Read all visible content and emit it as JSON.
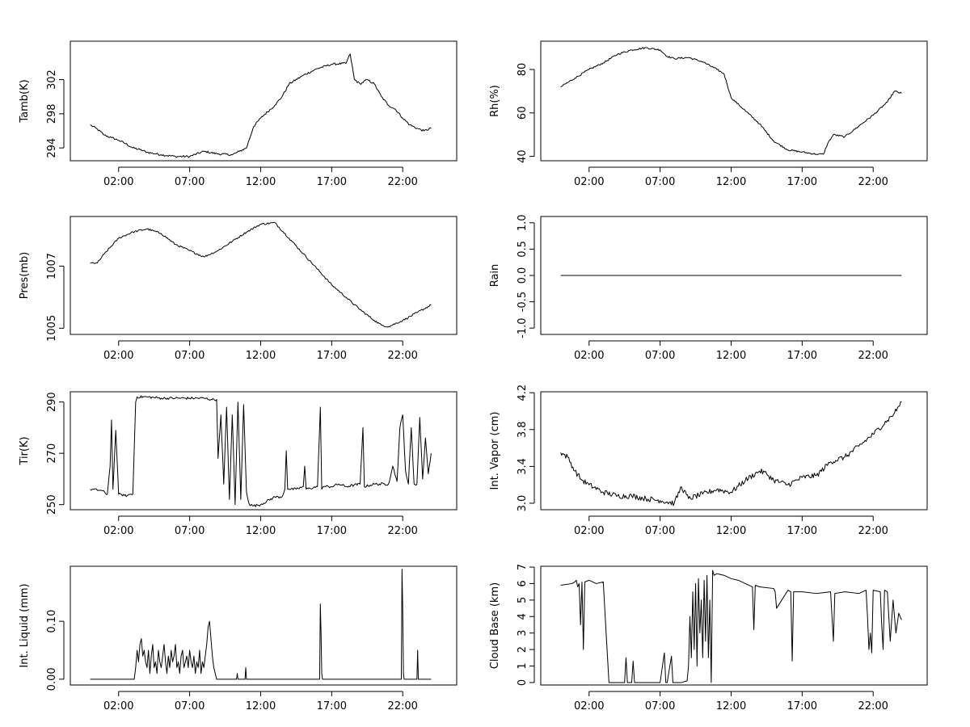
{
  "chart_data": [
    {
      "id": "tamb",
      "type": "line",
      "ylabel": "Tamb(K)",
      "xlim": [
        -1.4,
        25.8
      ],
      "ylim": [
        292.5,
        306.5
      ],
      "yticks": [
        294,
        298,
        302
      ],
      "ytick_labels": [
        "294",
        "298",
        "302"
      ],
      "xticks": [
        2,
        7,
        12,
        17,
        22
      ],
      "xtick_labels": [
        "02:00",
        "07:00",
        "12:00",
        "17:00",
        "22:00"
      ],
      "noise": 0.12,
      "x": [
        0,
        0.5,
        1,
        1.5,
        2,
        2.5,
        3,
        3.5,
        4,
        5,
        6,
        7,
        8,
        9,
        10,
        10.5,
        11,
        11.5,
        12,
        13,
        13.5,
        14,
        15,
        16,
        17,
        18,
        18.3,
        18.6,
        19,
        19.5,
        20,
        20.5,
        21,
        21.5,
        22,
        22.5,
        23,
        23.5,
        24
      ],
      "y": [
        296.7,
        296.2,
        295.5,
        295.2,
        294.9,
        294.5,
        294.0,
        293.8,
        293.5,
        293.2,
        293.0,
        293.0,
        293.6,
        293.3,
        293.2,
        293.6,
        294.0,
        296.5,
        297.5,
        299.0,
        300.0,
        301.5,
        302.5,
        303.3,
        303.8,
        303.9,
        305.0,
        302.0,
        301.5,
        302.0,
        301.5,
        300.0,
        299.0,
        298.5,
        297.5,
        296.7,
        296.3,
        296.0,
        296.3
      ]
    },
    {
      "id": "rh",
      "type": "line",
      "ylabel": "Rh(%)",
      "xlim": [
        -1.4,
        25.8
      ],
      "ylim": [
        38,
        93
      ],
      "yticks": [
        40,
        60,
        80
      ],
      "ytick_labels": [
        "40",
        "60",
        "80"
      ],
      "xticks": [
        2,
        7,
        12,
        17,
        22
      ],
      "xtick_labels": [
        "02:00",
        "07:00",
        "12:00",
        "17:00",
        "22:00"
      ],
      "noise": 0.4,
      "x": [
        0,
        1,
        2,
        3,
        4,
        5,
        6,
        7,
        7.5,
        8,
        9,
        10,
        11,
        11.5,
        12,
        13,
        14,
        15,
        16,
        17,
        18,
        18.5,
        18.8,
        19.2,
        20,
        21,
        22,
        23,
        23.5,
        24
      ],
      "y": [
        72,
        76,
        80,
        83,
        87,
        89,
        90,
        89,
        86,
        85,
        85.5,
        83.5,
        80,
        78,
        67,
        61,
        55,
        47,
        43,
        42,
        41,
        41,
        46,
        50,
        49,
        54,
        59,
        65,
        70,
        69
      ]
    },
    {
      "id": "pres",
      "type": "line",
      "ylabel": "Pres(mb)",
      "xlim": [
        -1.4,
        25.8
      ],
      "ylim": [
        1004.8,
        1008.6
      ],
      "yticks": [
        1005,
        1007
      ],
      "ytick_labels": [
        "1005",
        "1007"
      ],
      "xticks": [
        2,
        7,
        12,
        17,
        22
      ],
      "xtick_labels": [
        "02:00",
        "07:00",
        "12:00",
        "17:00",
        "22:00"
      ],
      "noise": 0.03,
      "x": [
        0,
        0.5,
        1,
        2,
        3,
        4,
        5,
        6,
        7,
        8,
        9,
        10,
        11,
        12,
        13,
        14,
        15,
        16,
        17,
        18,
        19,
        20,
        20.5,
        21,
        22,
        23,
        24
      ],
      "y": [
        1007.1,
        1007.1,
        1007.4,
        1007.9,
        1008.1,
        1008.2,
        1008.05,
        1007.7,
        1007.5,
        1007.3,
        1007.5,
        1007.8,
        1008.1,
        1008.35,
        1008.4,
        1007.9,
        1007.4,
        1006.9,
        1006.4,
        1006.0,
        1005.6,
        1005.25,
        1005.1,
        1005.05,
        1005.25,
        1005.5,
        1005.75
      ]
    },
    {
      "id": "rain",
      "type": "line",
      "ylabel": "Rain",
      "xlim": [
        -1.4,
        25.8
      ],
      "ylim": [
        -1.12,
        1.12
      ],
      "yticks": [
        -1.0,
        -0.5,
        0.0,
        0.5,
        1.0
      ],
      "ytick_labels": [
        "-1.0",
        "-0.5",
        "0.0",
        "0.5",
        "1.0"
      ],
      "xticks": [
        2,
        7,
        12,
        17,
        22
      ],
      "xtick_labels": [
        "02:00",
        "07:00",
        "12:00",
        "17:00",
        "22:00"
      ],
      "noise": 0,
      "x": [
        0,
        24
      ],
      "y": [
        0,
        0
      ]
    },
    {
      "id": "tir",
      "type": "line",
      "ylabel": "Tir(K)",
      "xlim": [
        -1.4,
        25.8
      ],
      "ylim": [
        248,
        294
      ],
      "yticks": [
        250,
        270,
        290
      ],
      "ytick_labels": [
        "250",
        "270",
        "290"
      ],
      "xticks": [
        2,
        7,
        12,
        17,
        22
      ],
      "xtick_labels": [
        "02:00",
        "07:00",
        "12:00",
        "17:00",
        "22:00"
      ],
      "noise": 0.5,
      "x": [
        0,
        0.8,
        1.2,
        1.4,
        1.5,
        1.6,
        1.8,
        2.0,
        2.2,
        2.4,
        2.6,
        2.8,
        3.0,
        3.2,
        3.3,
        4,
        5,
        6,
        7,
        8,
        8.5,
        8.9,
        9.0,
        9.2,
        9.4,
        9.6,
        9.8,
        10.0,
        10.2,
        10.4,
        10.6,
        10.8,
        11.0,
        11.2,
        11.5,
        12,
        13,
        13.5,
        13.7,
        13.8,
        13.9,
        14,
        14.5,
        15,
        15.1,
        15.2,
        16,
        16.2,
        16.3,
        16.4,
        17,
        17.5,
        18,
        19,
        19.2,
        19.3,
        20,
        21,
        21.3,
        21.6,
        21.8,
        22.0,
        22.2,
        22.4,
        22.6,
        22.8,
        23.0,
        23.2,
        23.4,
        23.6,
        23.8,
        24
      ],
      "y": [
        256,
        255.5,
        254,
        265,
        283,
        256,
        279,
        254,
        254,
        253.5,
        253.5,
        254,
        254,
        290,
        292,
        292,
        291.5,
        291.5,
        291.5,
        291.5,
        291,
        291,
        268,
        285,
        258,
        288,
        252,
        285,
        250,
        290,
        252,
        289,
        255,
        250,
        249.5,
        250,
        253,
        253,
        256,
        271,
        256,
        256,
        256,
        257,
        265,
        256,
        257,
        288,
        256,
        257,
        257,
        258,
        257,
        258,
        280,
        257,
        258,
        258,
        265,
        259,
        280,
        285,
        263,
        258,
        280,
        258,
        258,
        284,
        260,
        276,
        262,
        270
      ]
    },
    {
      "id": "vapor",
      "type": "line",
      "ylabel": "Int. Vapor (cm)",
      "xlim": [
        -1.4,
        25.8
      ],
      "ylim": [
        2.93,
        4.21
      ],
      "yticks": [
        3.0,
        3.4,
        3.8,
        4.2
      ],
      "ytick_labels": [
        "3.0",
        "3.4",
        "3.8",
        "4.2"
      ],
      "xticks": [
        2,
        7,
        12,
        17,
        22
      ],
      "xtick_labels": [
        "02:00",
        "07:00",
        "12:00",
        "17:00",
        "22:00"
      ],
      "noise": 0.03,
      "x": [
        0,
        0.5,
        1,
        1.5,
        2,
        3,
        4,
        5,
        6,
        7,
        8,
        8.5,
        9,
        10,
        11,
        12,
        13,
        14,
        14.5,
        15,
        16,
        17,
        18,
        19,
        20,
        21,
        22,
        23,
        23.5,
        24
      ],
      "y": [
        3.55,
        3.5,
        3.35,
        3.25,
        3.2,
        3.12,
        3.08,
        3.08,
        3.05,
        3.03,
        3.0,
        3.18,
        3.05,
        3.1,
        3.15,
        3.12,
        3.25,
        3.35,
        3.32,
        3.25,
        3.2,
        3.28,
        3.3,
        3.45,
        3.5,
        3.62,
        3.75,
        3.9,
        3.98,
        4.1
      ]
    },
    {
      "id": "liquid",
      "type": "line",
      "ylabel": "Int. Liquid (mm)",
      "xlim": [
        -1.4,
        25.8
      ],
      "ylim": [
        -0.01,
        0.195
      ],
      "yticks": [
        0.0,
        0.1
      ],
      "ytick_labels": [
        "0.00",
        "0.10"
      ],
      "xticks": [
        2,
        7,
        12,
        17,
        22
      ],
      "xtick_labels": [
        "02:00",
        "07:00",
        "12:00",
        "17:00",
        "22:00"
      ],
      "noise": 0,
      "x": [
        0,
        3.1,
        3.2,
        3.3,
        3.4,
        3.5,
        3.6,
        3.7,
        3.8,
        3.9,
        4.0,
        4.1,
        4.2,
        4.3,
        4.4,
        4.5,
        4.6,
        4.7,
        4.8,
        4.9,
        5.0,
        5.1,
        5.2,
        5.3,
        5.4,
        5.5,
        5.6,
        5.7,
        5.8,
        5.9,
        6.0,
        6.1,
        6.2,
        6.3,
        6.4,
        6.5,
        6.6,
        6.7,
        6.8,
        6.9,
        7.0,
        7.1,
        7.2,
        7.3,
        7.4,
        7.5,
        7.6,
        7.7,
        7.8,
        7.9,
        8.0,
        8.1,
        8.2,
        8.3,
        8.4,
        8.5,
        8.6,
        8.7,
        8.8,
        8.9,
        9.0,
        9.1,
        10.3,
        10.35,
        10.4,
        10.9,
        10.95,
        11.0,
        16.15,
        16.2,
        16.25,
        16.3,
        16.35,
        21.9,
        21.95,
        22.0,
        22.05,
        22.1,
        23.0,
        23.05,
        23.1,
        24
      ],
      "y": [
        0,
        0,
        0.02,
        0.05,
        0.03,
        0.06,
        0.07,
        0.04,
        0.05,
        0.03,
        0.02,
        0.05,
        0.01,
        0.04,
        0.06,
        0.02,
        0.03,
        0.01,
        0.05,
        0.03,
        0.02,
        0.04,
        0.06,
        0.03,
        0.01,
        0.04,
        0.02,
        0.05,
        0.03,
        0.04,
        0.06,
        0.02,
        0.03,
        0.01,
        0.04,
        0.05,
        0.02,
        0.03,
        0.04,
        0.02,
        0.05,
        0.03,
        0.02,
        0.04,
        0.01,
        0.03,
        0.02,
        0.05,
        0.01,
        0.03,
        0.02,
        0.04,
        0.06,
        0.09,
        0.1,
        0.07,
        0.04,
        0.02,
        0.01,
        0.0,
        0.0,
        0.0,
        0.0,
        0.01,
        0.0,
        0.0,
        0.02,
        0.0,
        0.0,
        0.13,
        0.08,
        0.01,
        0.0,
        0.0,
        0.19,
        0.12,
        0.01,
        0.0,
        0.0,
        0.05,
        0.0,
        0.0
      ]
    },
    {
      "id": "cloudbase",
      "type": "line",
      "ylabel": "Cloud Base (km)",
      "xlim": [
        -1.4,
        25.8
      ],
      "ylim": [
        -0.15,
        7.05
      ],
      "yticks": [
        0,
        1,
        2,
        3,
        4,
        5,
        6,
        7
      ],
      "ytick_labels": [
        "0",
        "1",
        "2",
        "3",
        "4",
        "5",
        "6",
        "7"
      ],
      "xticks": [
        2,
        7,
        12,
        17,
        22
      ],
      "xtick_labels": [
        "02:00",
        "07:00",
        "12:00",
        "17:00",
        "22:00"
      ],
      "noise": 0,
      "x": [
        0,
        0.8,
        1.0,
        1.1,
        1.2,
        1.3,
        1.4,
        1.5,
        1.6,
        1.7,
        2.0,
        2.5,
        3.0,
        3.2,
        3.4,
        4.5,
        4.6,
        4.7,
        5.0,
        5.1,
        5.2,
        6.0,
        7.0,
        7.3,
        7.4,
        7.5,
        7.8,
        7.9,
        8.0,
        8.5,
        8.9,
        9.0,
        9.1,
        9.2,
        9.3,
        9.4,
        9.5,
        9.6,
        9.7,
        9.8,
        9.9,
        10.0,
        10.1,
        10.2,
        10.3,
        10.4,
        10.5,
        10.6,
        10.7,
        10.8,
        11.0,
        11.5,
        12.0,
        12.5,
        13.0,
        13.5,
        13.6,
        13.7,
        14,
        15,
        15.1,
        15.2,
        16,
        16.2,
        16.3,
        16.4,
        17,
        18,
        19,
        19.2,
        19.3,
        20,
        21,
        21.5,
        21.6,
        21.7,
        21.8,
        21.9,
        22.0,
        22.5,
        22.6,
        22.7,
        22.8,
        23.0,
        23.2,
        23.4,
        23.6,
        23.8,
        24
      ],
      "y": [
        5.9,
        6.0,
        6.1,
        6.2,
        5.8,
        6.0,
        3.5,
        6.1,
        2.0,
        6.1,
        6.2,
        6.0,
        6.1,
        3.0,
        0.0,
        0.0,
        1.5,
        0.0,
        0.0,
        1.3,
        0.0,
        0.0,
        0.0,
        1.8,
        0.0,
        0.0,
        1.6,
        0.0,
        0.0,
        0.0,
        0.1,
        1.0,
        4.0,
        1.5,
        5.5,
        2.0,
        6.0,
        1.0,
        6.3,
        3.0,
        5.0,
        1.5,
        6.2,
        2.5,
        6.5,
        1.5,
        5.0,
        0.0,
        6.8,
        6.5,
        6.6,
        6.5,
        6.3,
        6.2,
        6.0,
        5.8,
        3.2,
        5.9,
        5.8,
        5.7,
        5.5,
        4.5,
        5.6,
        5.5,
        1.3,
        5.5,
        5.5,
        5.4,
        5.5,
        2.5,
        5.4,
        5.5,
        5.4,
        5.6,
        4.0,
        2.0,
        3.0,
        1.8,
        5.6,
        5.5,
        3.5,
        2.0,
        5.6,
        5.5,
        2.5,
        5.0,
        3.0,
        4.2,
        3.8
      ]
    }
  ]
}
